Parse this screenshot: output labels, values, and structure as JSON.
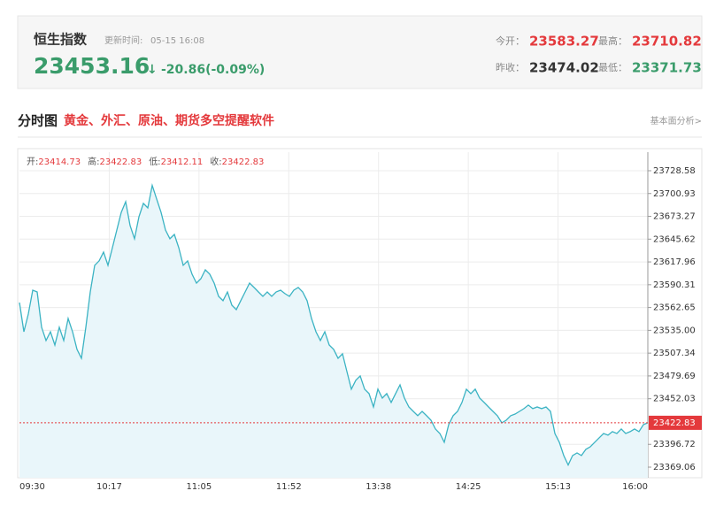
{
  "header": {
    "name": "恒生指数",
    "update_label": "更新时间:",
    "update_time": "05-15 16:08",
    "price": 23453.16,
    "arrow": "↓",
    "change": "-20.86(-0.09%)",
    "color": "#3a9c6b",
    "stats": [
      {
        "label": "今开：",
        "value": 23583.27,
        "color": "#e4393c"
      },
      {
        "label": "最高：",
        "value": 23710.82,
        "color": "#e4393c"
      },
      {
        "label": "昨收：",
        "value": 23474.02,
        "color": "#333333"
      },
      {
        "label": "最低：",
        "value": 23371.73,
        "color": "#3a9c6b"
      }
    ]
  },
  "section": {
    "title": "分时图",
    "promo": "黄金、外汇、原油、期货多空提醒软件",
    "link": "基本面分析>"
  },
  "chart_data": {
    "type": "line",
    "info": [
      {
        "label": "开:",
        "value": 23414.73
      },
      {
        "label": "高:",
        "value": 23422.83
      },
      {
        "label": "低:",
        "value": 23412.11
      },
      {
        "label": "收:",
        "value": 23422.83
      }
    ],
    "xticks": [
      "09:30",
      "10:17",
      "11:05",
      "11:52",
      "13:38",
      "14:25",
      "15:13",
      "16:00"
    ],
    "ylim": [
      23356.2,
      23751.1
    ],
    "yticks": [
      23728.58,
      23700.93,
      23673.27,
      23645.62,
      23617.96,
      23590.31,
      23562.65,
      {
        "value": 23535,
        "label": "23535.00"
      },
      23507.34,
      23479.69,
      23452.03,
      23396.72,
      23369.06
    ],
    "last_price": 23422.83,
    "last_color": "#e4393c",
    "grid": true,
    "color": "#3bb3c3",
    "fill": "#e9f6fa",
    "values": [
      23568.7,
      23533.3,
      23554.8,
      23583.7,
      23581.6,
      23538.7,
      23522.6,
      23533.3,
      23517.2,
      23538.7,
      23522.6,
      23549.4,
      23533.3,
      23511.9,
      23501.1,
      23538.7,
      23581.6,
      23613.8,
      23619.2,
      23629.9,
      23613.8,
      23635.2,
      23656.7,
      23678,
      23691,
      23662,
      23646,
      23672.8,
      23689,
      23683.5,
      23710.8,
      23694.3,
      23678,
      23656.7,
      23646,
      23651.3,
      23635.2,
      23613.8,
      23619.2,
      23603.1,
      23592.3,
      23597.7,
      23608.4,
      23603.1,
      23592.3,
      23576.2,
      23570.9,
      23581.6,
      23565.5,
      23560.1,
      23570.9,
      23581.6,
      23592.3,
      23587,
      23581.6,
      23576.2,
      23581.6,
      23576.2,
      23581.6,
      23583.7,
      23579.5,
      23576.2,
      23583.7,
      23587,
      23581.6,
      23570.9,
      23549.4,
      23533.3,
      23522.6,
      23533.3,
      23517.2,
      23511.9,
      23501.1,
      23506.5,
      23485,
      23463.6,
      23474.3,
      23479.7,
      23463.6,
      23458.2,
      23442.1,
      23463.6,
      23452.8,
      23458.2,
      23447.5,
      23458.2,
      23468.9,
      23452.8,
      23442.1,
      23436.7,
      23431.4,
      23436.7,
      23431.4,
      23426,
      23415.3,
      23409.9,
      23399.2,
      23420.6,
      23431.4,
      23436.7,
      23447.5,
      23463.6,
      23458.2,
      23463.6,
      23452.8,
      23447.5,
      23442.1,
      23436.7,
      23431.4,
      23422.8,
      23426,
      23431.4,
      23433.5,
      23436.7,
      23440,
      23444.3,
      23440,
      23442.1,
      23440,
      23442.1,
      23436.7,
      23409.9,
      23399.2,
      23383.1,
      23371.7,
      23383.1,
      23386.3,
      23383.1,
      23390.6,
      23393.8,
      23399.2,
      23404.6,
      23409.9,
      23407.8,
      23412.1,
      23409.9,
      23415.3,
      23409.9,
      23412.1,
      23415.3,
      23412.1,
      23420.6,
      23422.8
    ]
  }
}
